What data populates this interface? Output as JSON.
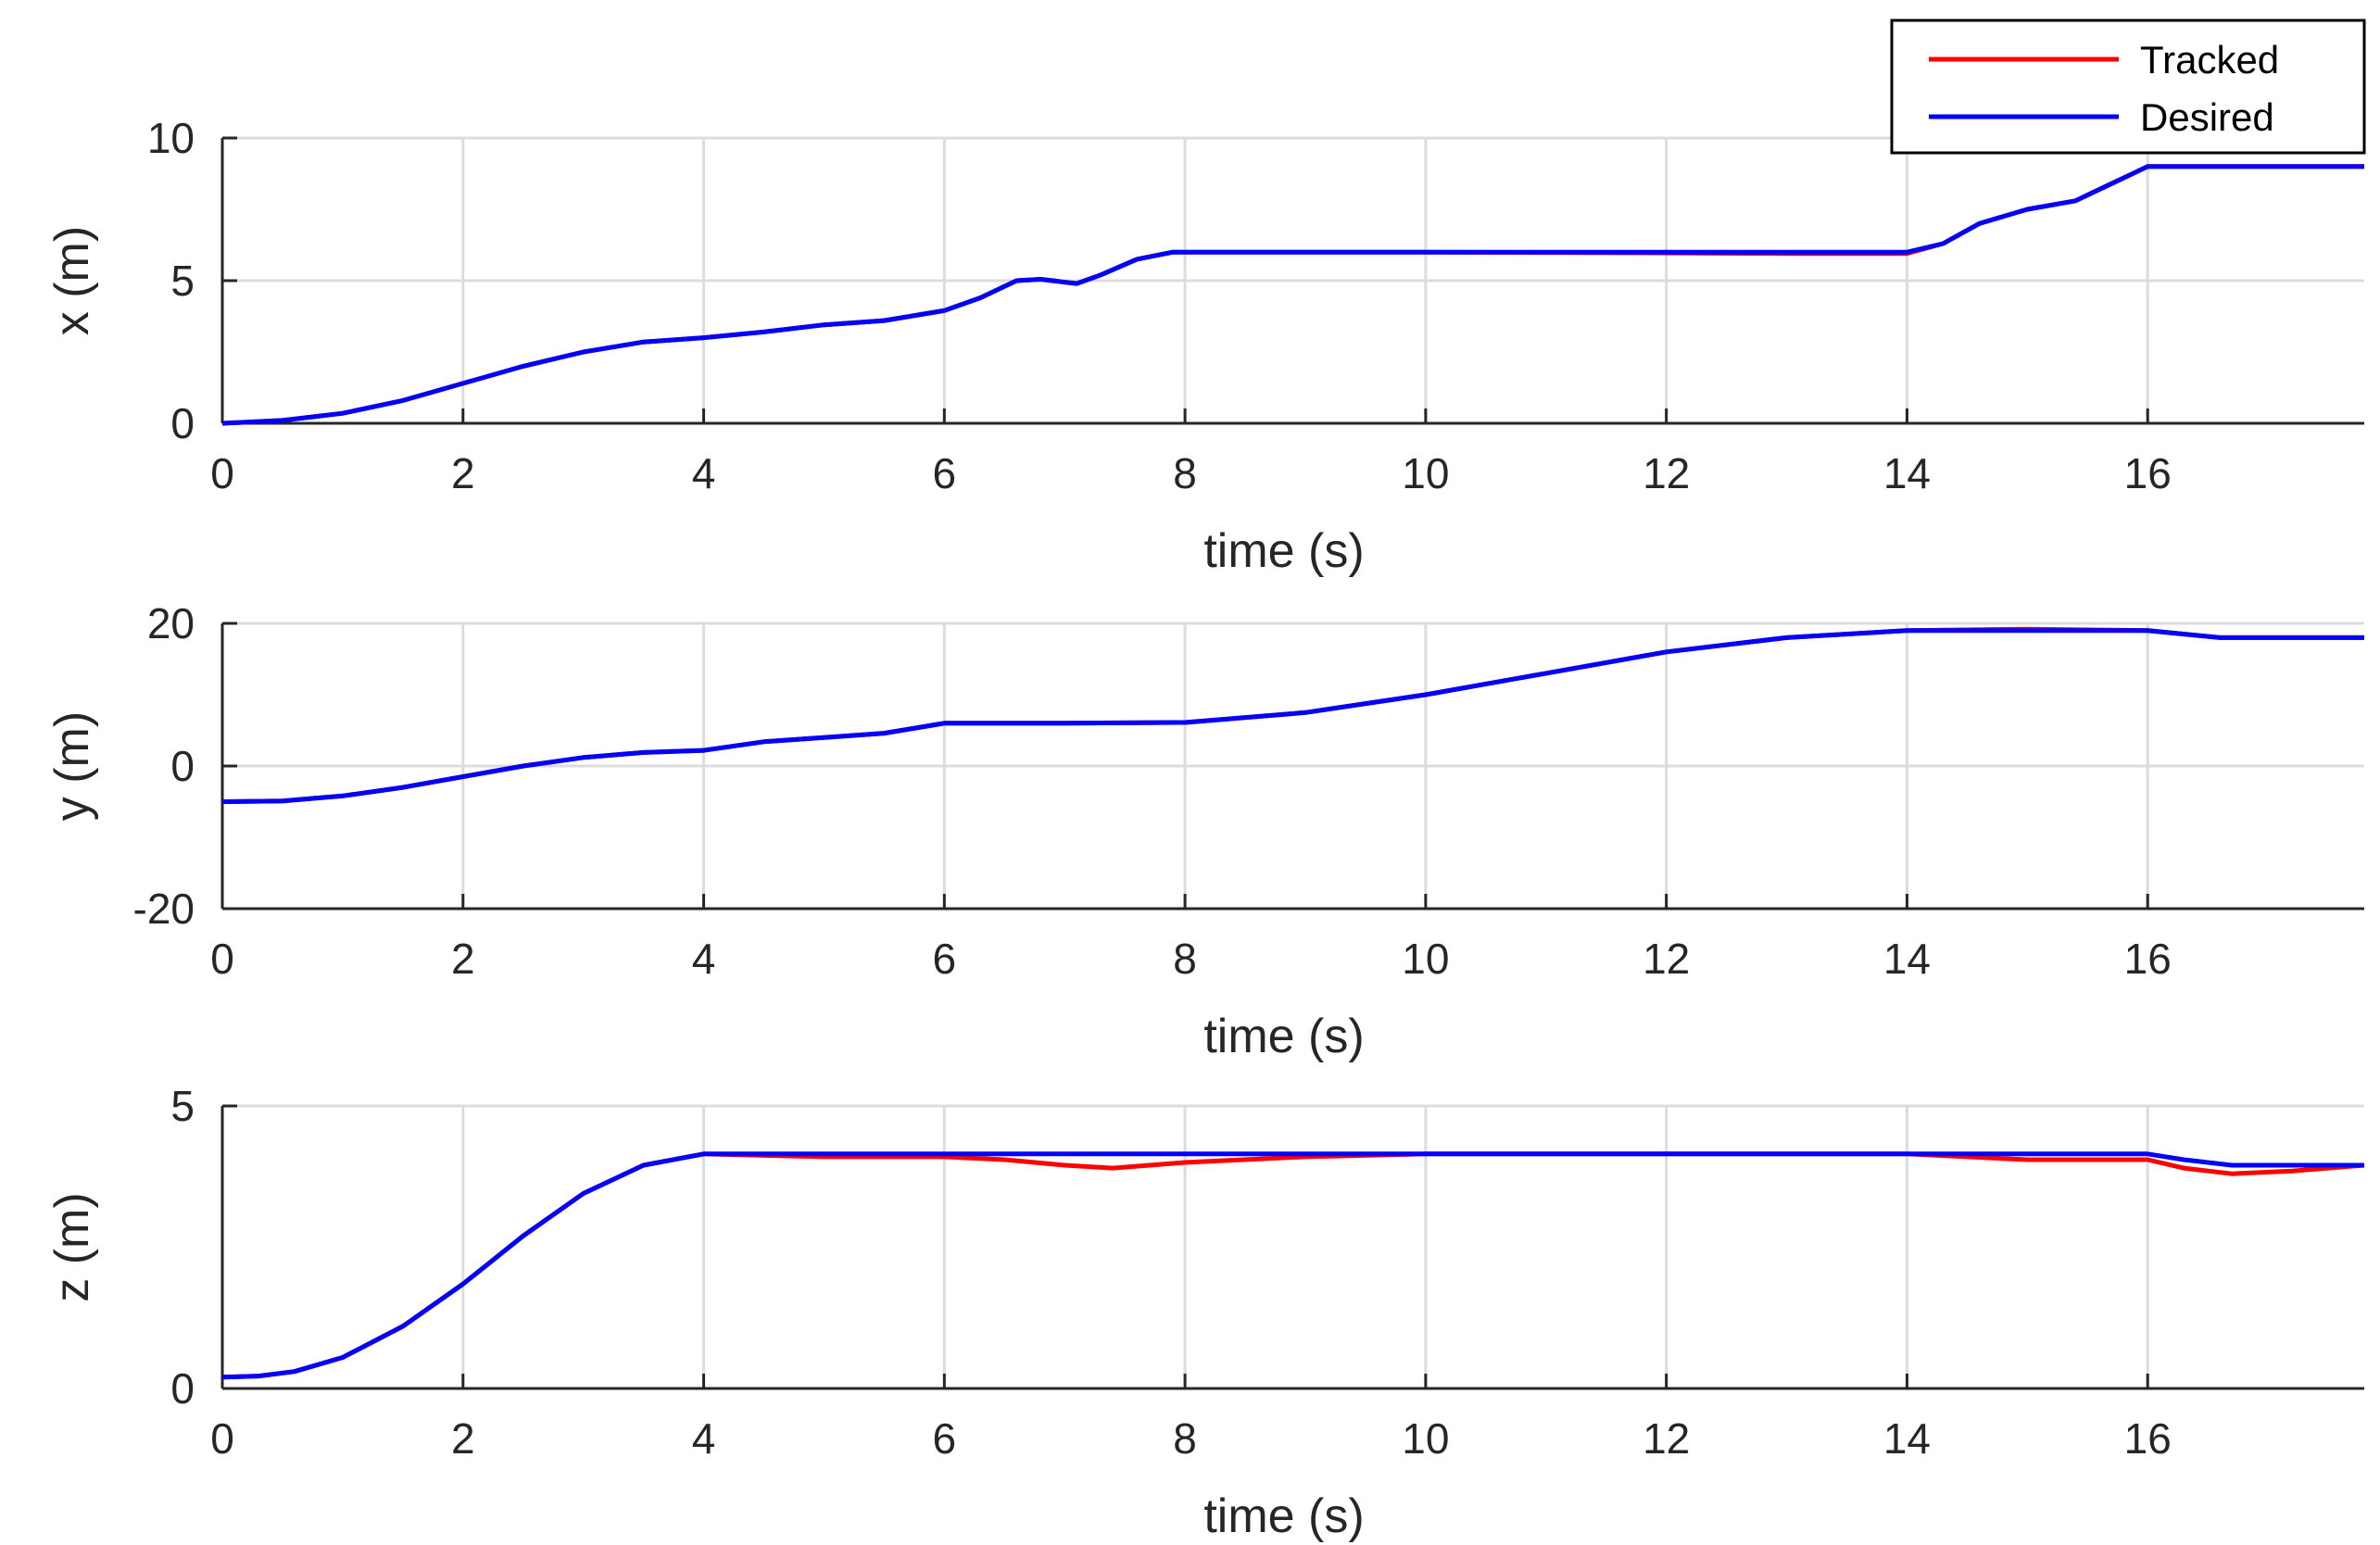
{
  "chart_data": [
    {
      "type": "line",
      "xlabel": "time (s)",
      "ylabel": "x (m)",
      "xlim": [
        0,
        17.8
      ],
      "ylim": [
        0,
        10
      ],
      "xticks": [
        0,
        2,
        4,
        6,
        8,
        10,
        12,
        14,
        16
      ],
      "yticks": [
        0,
        5,
        10
      ],
      "grid": true,
      "legend": "top-right",
      "series": [
        {
          "name": "Tracked",
          "color": "#ff0000",
          "x": [
            0,
            0.5,
            1,
            1.5,
            2,
            2.5,
            3,
            3.5,
            4,
            4.5,
            5,
            5.5,
            6,
            6.3,
            6.6,
            6.8,
            7.1,
            7.3,
            7.6,
            7.9,
            8,
            10,
            12,
            13,
            14,
            14.3,
            14.6,
            15,
            15.4,
            15.8,
            16,
            16.3,
            17.8
          ],
          "y": [
            0,
            0.1,
            0.35,
            0.8,
            1.4,
            2.0,
            2.5,
            2.85,
            3.0,
            3.2,
            3.45,
            3.6,
            3.95,
            4.4,
            5.0,
            5.05,
            4.9,
            5.2,
            5.75,
            6.0,
            6.0,
            6.0,
            5.97,
            5.95,
            5.95,
            6.3,
            7.0,
            7.5,
            7.8,
            8.6,
            9.0,
            9.0,
            9.0
          ]
        },
        {
          "name": "Desired",
          "color": "#0000ff",
          "x": [
            0,
            0.5,
            1,
            1.5,
            2,
            2.5,
            3,
            3.5,
            4,
            4.5,
            5,
            5.5,
            6,
            6.3,
            6.6,
            6.8,
            7.1,
            7.3,
            7.6,
            7.9,
            8,
            10,
            12,
            13,
            14,
            14.3,
            14.6,
            15,
            15.4,
            15.8,
            16,
            16.3,
            17.8
          ],
          "y": [
            0,
            0.1,
            0.35,
            0.8,
            1.4,
            2.0,
            2.5,
            2.85,
            3.0,
            3.2,
            3.45,
            3.6,
            3.95,
            4.4,
            5.0,
            5.05,
            4.9,
            5.2,
            5.75,
            6.0,
            6.0,
            6.0,
            6.0,
            6.0,
            6.0,
            6.3,
            7.0,
            7.5,
            7.8,
            8.6,
            9.0,
            9.0,
            9.0
          ]
        }
      ]
    },
    {
      "type": "line",
      "xlabel": "time (s)",
      "ylabel": "y (m)",
      "xlim": [
        0,
        17.8
      ],
      "ylim": [
        -20,
        20
      ],
      "xticks": [
        0,
        2,
        4,
        6,
        8,
        10,
        12,
        14,
        16
      ],
      "yticks": [
        -20,
        0,
        20
      ],
      "grid": true,
      "series": [
        {
          "name": "Tracked",
          "color": "#ff0000",
          "x": [
            0,
            0.5,
            1,
            1.5,
            2,
            2.5,
            3,
            3.5,
            4,
            4.5,
            5,
            5.5,
            6,
            7,
            8,
            9,
            10,
            11,
            12,
            13,
            14,
            15,
            16,
            16.6,
            17,
            17.8
          ],
          "y": [
            -5,
            -4.9,
            -4.2,
            -3.0,
            -1.5,
            0,
            1.2,
            1.9,
            2.2,
            3.4,
            4.0,
            4.6,
            6.0,
            6.0,
            6.1,
            7.5,
            10.0,
            13.0,
            16.0,
            18.0,
            19.0,
            19.2,
            19.0,
            18.0,
            18.0,
            18.0
          ]
        },
        {
          "name": "Desired",
          "color": "#0000ff",
          "x": [
            0,
            0.5,
            1,
            1.5,
            2,
            2.5,
            3,
            3.5,
            4,
            4.5,
            5,
            5.5,
            6,
            7,
            8,
            9,
            10,
            11,
            12,
            13,
            14,
            15,
            16,
            16.6,
            17,
            17.8
          ],
          "y": [
            -5,
            -4.9,
            -4.2,
            -3.0,
            -1.5,
            0,
            1.2,
            1.9,
            2.2,
            3.4,
            4.0,
            4.6,
            6.0,
            6.0,
            6.1,
            7.5,
            10.0,
            13.0,
            16.0,
            18.0,
            19.0,
            19.0,
            19.0,
            18.0,
            18.0,
            18.0
          ]
        }
      ]
    },
    {
      "type": "line",
      "xlabel": "time (s)",
      "ylabel": "z (m)",
      "xlim": [
        0,
        17.8
      ],
      "ylim": [
        0,
        5
      ],
      "xticks": [
        0,
        2,
        4,
        6,
        8,
        10,
        12,
        14,
        16
      ],
      "yticks": [
        0,
        5
      ],
      "grid": true,
      "series": [
        {
          "name": "Tracked",
          "color": "#ff0000",
          "x": [
            0,
            0.3,
            0.6,
            1,
            1.5,
            2,
            2.5,
            3,
            3.5,
            4,
            5,
            6,
            6.5,
            7,
            7.4,
            8,
            9,
            10,
            12,
            14,
            15,
            16,
            16.3,
            16.7,
            17.2,
            17.8
          ],
          "y": [
            0.2,
            0.22,
            0.3,
            0.55,
            1.1,
            1.85,
            2.7,
            3.45,
            3.95,
            4.15,
            4.1,
            4.1,
            4.05,
            3.95,
            3.9,
            4.0,
            4.1,
            4.15,
            4.15,
            4.15,
            4.05,
            4.05,
            3.9,
            3.8,
            3.85,
            3.95
          ]
        },
        {
          "name": "Desired",
          "color": "#0000ff",
          "x": [
            0,
            0.3,
            0.6,
            1,
            1.5,
            2,
            2.5,
            3,
            3.5,
            4,
            5,
            6,
            6.5,
            7,
            7.4,
            8,
            9,
            10,
            12,
            14,
            15,
            16,
            16.3,
            16.7,
            17.2,
            17.8
          ],
          "y": [
            0.2,
            0.22,
            0.3,
            0.55,
            1.1,
            1.85,
            2.7,
            3.45,
            3.95,
            4.15,
            4.15,
            4.15,
            4.15,
            4.15,
            4.15,
            4.15,
            4.15,
            4.15,
            4.15,
            4.15,
            4.15,
            4.15,
            4.05,
            3.95,
            3.95,
            3.95
          ]
        }
      ]
    }
  ]
}
